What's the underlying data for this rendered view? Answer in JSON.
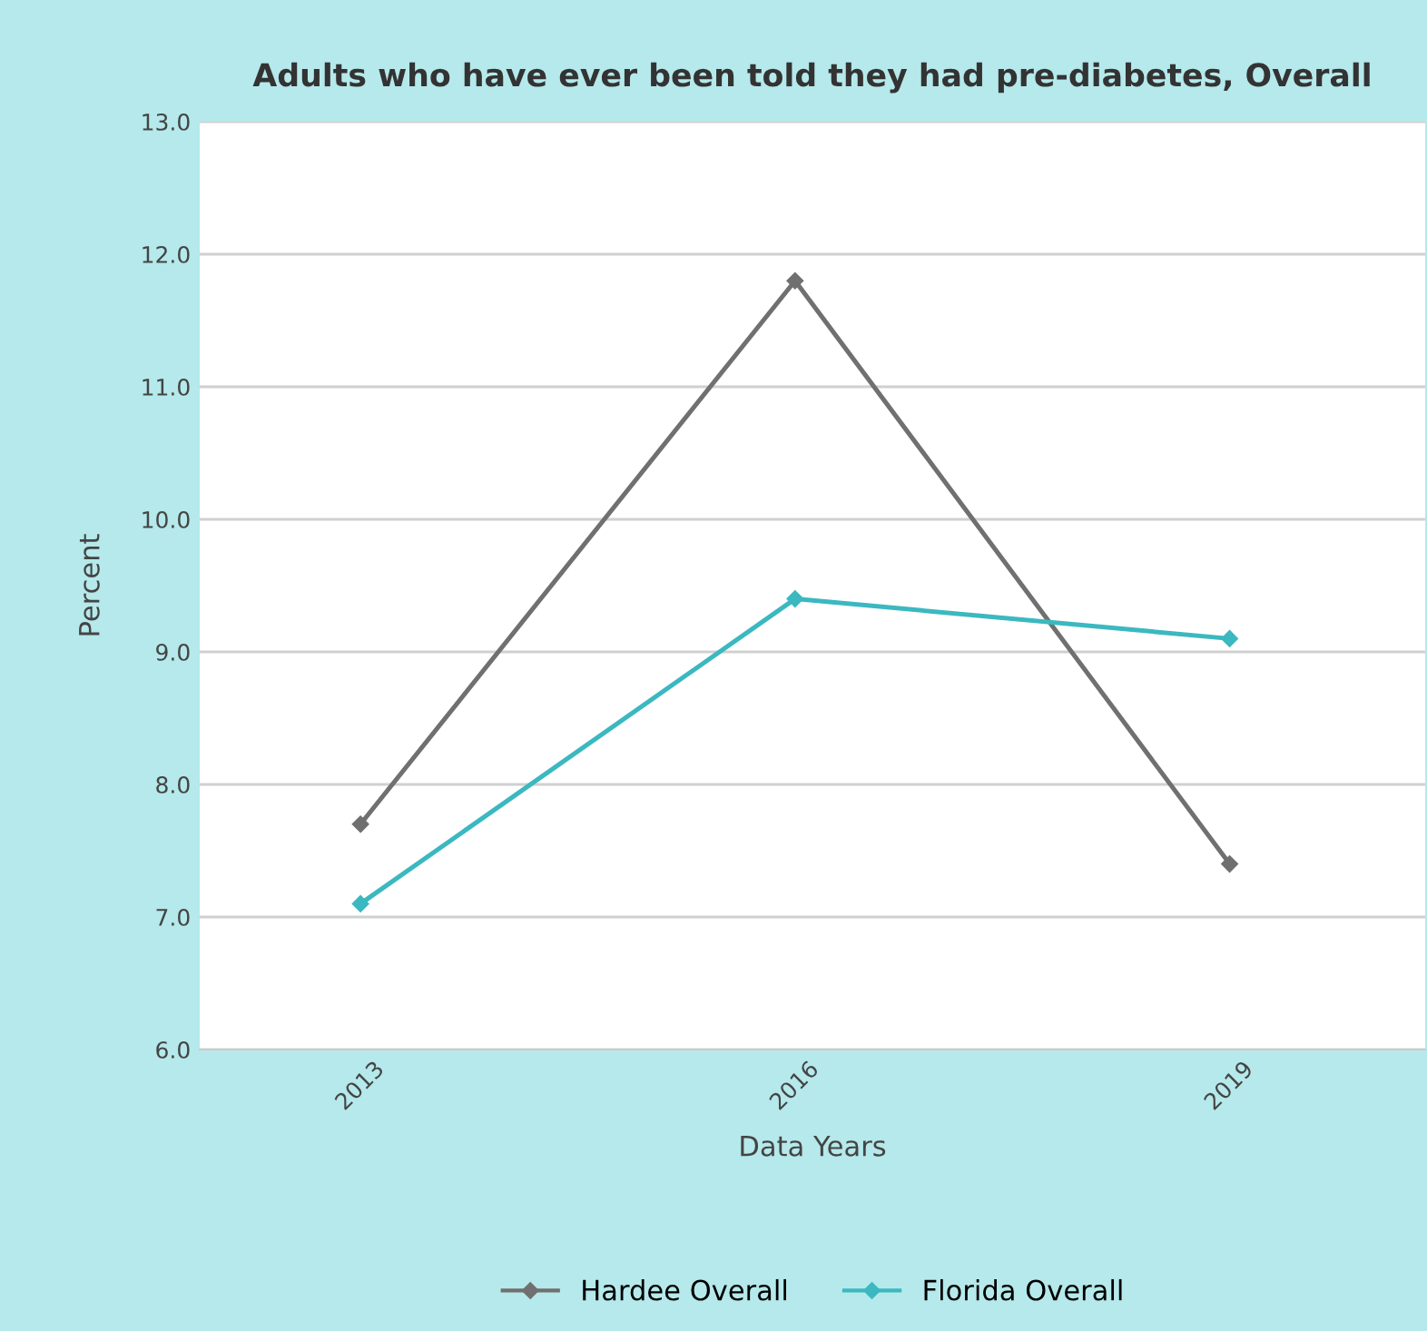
{
  "chart_data": {
    "type": "line",
    "title": "Adults who have ever been told they had pre-diabetes, Overall",
    "xlabel": "Data Years",
    "ylabel": "Percent",
    "categories": [
      "2013",
      "2016",
      "2019"
    ],
    "series": [
      {
        "name": "Hardee Overall",
        "color": "#707070",
        "values": [
          7.7,
          11.8,
          7.4
        ]
      },
      {
        "name": "Florida Overall",
        "color": "#3bb8c0",
        "values": [
          7.1,
          9.4,
          9.1
        ]
      }
    ],
    "ylim": [
      6,
      13
    ],
    "yticks": [
      {
        "value": 6,
        "label": "6.0"
      },
      {
        "value": 7,
        "label": "7.0"
      },
      {
        "value": 8,
        "label": "8.0"
      },
      {
        "value": 9,
        "label": "9.0"
      },
      {
        "value": 10,
        "label": "10.0"
      },
      {
        "value": 11,
        "label": "11.0"
      },
      {
        "value": 12,
        "label": "12.0"
      },
      {
        "value": 13,
        "label": "13.0"
      }
    ],
    "grid": "y",
    "legend": "bottom",
    "marker": "diamond",
    "line_style": "solid"
  }
}
